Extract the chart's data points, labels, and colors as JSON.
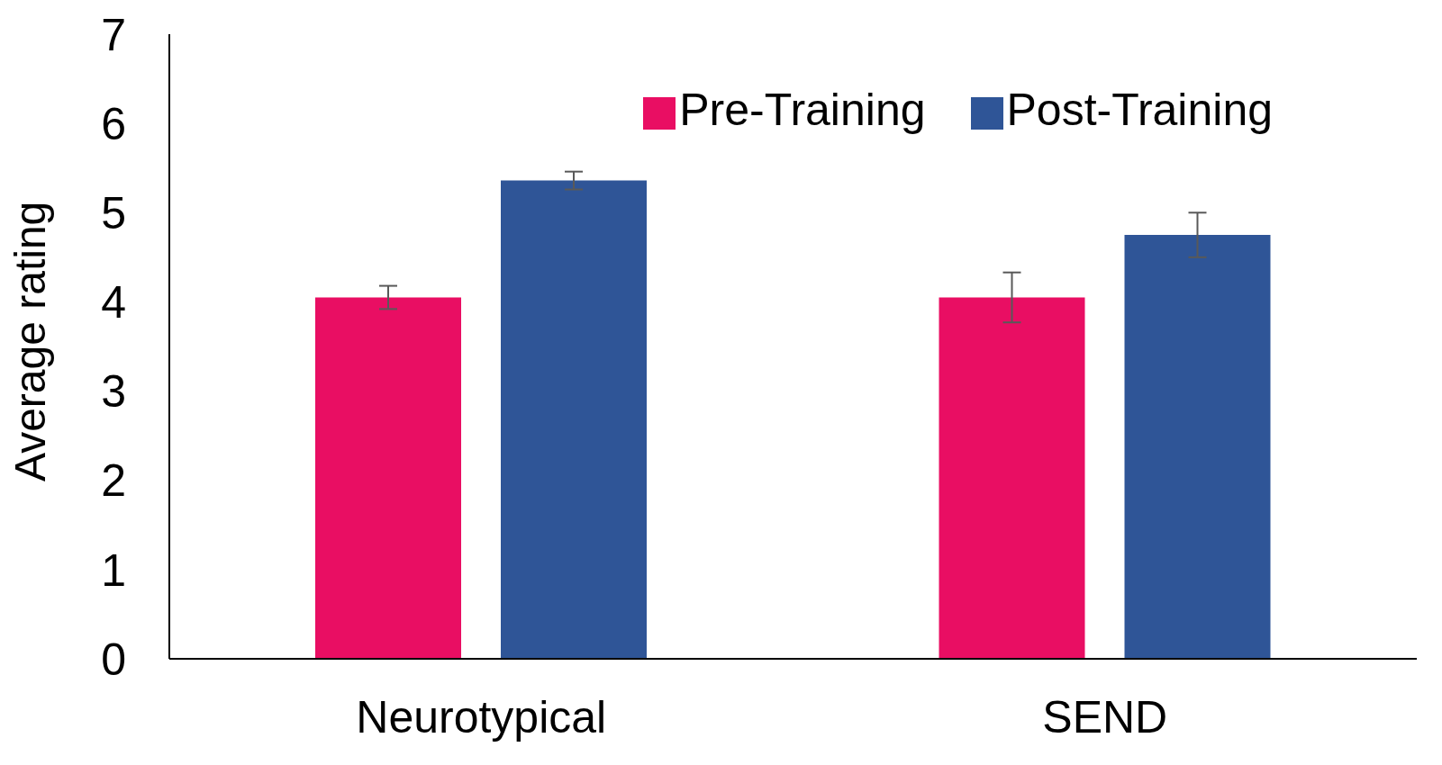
{
  "chart_data": {
    "type": "bar",
    "ylabel": "Average rating",
    "categories": [
      "Neurotypical",
      "SEND"
    ],
    "series": [
      {
        "name": "Pre-Training",
        "color": "#e90e63",
        "values": [
          4.05,
          4.05
        ],
        "errors": [
          0.13,
          0.28
        ]
      },
      {
        "name": "Post-Training",
        "color": "#2f5597",
        "values": [
          5.36,
          4.75
        ],
        "errors": [
          0.1,
          0.25
        ]
      }
    ],
    "ylim": [
      0,
      7
    ],
    "yticks": [
      0,
      1,
      2,
      3,
      4,
      5,
      6,
      7
    ],
    "grid": false,
    "legend": "top right"
  }
}
